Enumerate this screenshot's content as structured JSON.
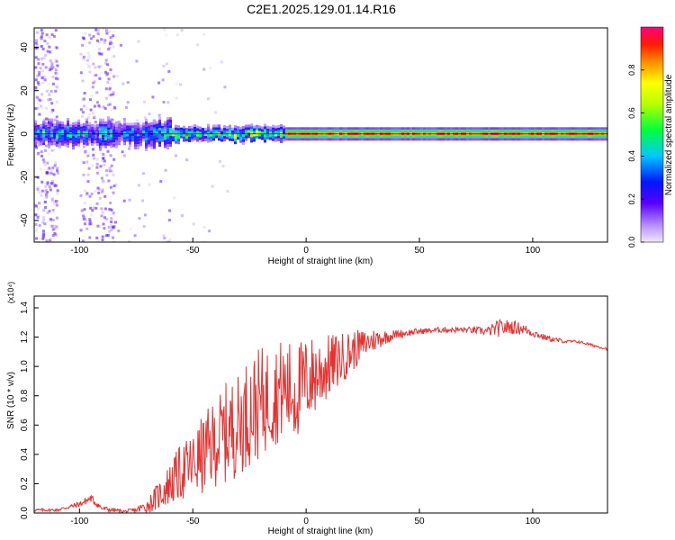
{
  "title": "C2E1.2025.129.01.14.R16",
  "colors": {
    "snr_line": "#e8302f",
    "axis": "#000000",
    "background": "#ffffff"
  },
  "chart_data": [
    {
      "type": "heatmap",
      "name": "spectrogram",
      "xlabel": "Height of straight line (km)",
      "ylabel": "Frequency (Hz)",
      "xlim": [
        -120,
        133
      ],
      "ylim": [
        -50,
        49
      ],
      "xticks": [
        -100,
        -50,
        0,
        50,
        100
      ],
      "xtick_labels": [
        "-100",
        "-50",
        "0",
        "50",
        "100"
      ],
      "yticks": [
        -40,
        -20,
        0,
        20,
        40
      ],
      "ytick_labels": [
        "-40",
        "-20",
        "0",
        "20",
        "40"
      ],
      "colorbar": {
        "label": "Normalized spectral amplitude",
        "range": [
          0,
          1
        ],
        "ticks": [
          0.0,
          0.2,
          0.4,
          0.6,
          0.8
        ],
        "tick_labels": [
          "0.0",
          "0.2",
          "0.4",
          "0.6",
          "0.8"
        ],
        "colormap": "rainbow"
      },
      "description_series": [
        {
          "name": "broadband noise bursts",
          "x_ranges": [
            [
              -120,
              -110
            ],
            [
              -100,
              -85
            ]
          ],
          "freq_span": [
            -50,
            49
          ],
          "amplitude": 0.1
        },
        {
          "name": "central band",
          "x_range": [
            -120,
            133
          ],
          "freq_center": 0,
          "amplitude": 0.85
        }
      ]
    },
    {
      "type": "line",
      "name": "snr",
      "xlabel": "Height of straight line (km)",
      "ylabel": "SNR (10 * v/v)",
      "yscale_label": "(x10⁴)",
      "xlim": [
        -120,
        133
      ],
      "ylim": [
        0,
        1.48
      ],
      "xticks": [
        -100,
        -50,
        0,
        50,
        100
      ],
      "xtick_labels": [
        "-100",
        "-50",
        "0",
        "50",
        "100"
      ],
      "yticks": [
        0.0,
        0.2,
        0.4,
        0.6,
        0.8,
        1.0,
        1.2,
        1.4
      ],
      "ytick_labels": [
        "0.0",
        "0.2",
        "0.4",
        "0.6",
        "0.8",
        "1.0",
        "1.2",
        "1.4"
      ],
      "series": [
        {
          "name": "SNR",
          "x": [
            -120,
            -110,
            -100,
            -95,
            -90,
            -80,
            -75,
            -70,
            -65,
            -60,
            -55,
            -50,
            -45,
            -40,
            -35,
            -30,
            -25,
            -20,
            -15,
            -10,
            -5,
            0,
            5,
            10,
            15,
            20,
            25,
            30,
            35,
            40,
            50,
            60,
            70,
            80,
            85,
            90,
            95,
            100,
            105,
            110,
            115,
            120,
            125,
            133
          ],
          "values": [
            0.02,
            0.02,
            0.06,
            0.1,
            0.03,
            0.01,
            0.02,
            0.05,
            0.12,
            0.2,
            0.28,
            0.33,
            0.4,
            0.48,
            0.55,
            0.6,
            0.7,
            0.75,
            0.8,
            0.85,
            0.82,
            0.9,
            0.95,
            1.0,
            1.05,
            1.1,
            1.15,
            1.18,
            1.2,
            1.22,
            1.24,
            1.25,
            1.25,
            1.24,
            1.26,
            1.27,
            1.26,
            1.23,
            1.2,
            1.18,
            1.17,
            1.17,
            1.15,
            1.12
          ],
          "noise_amplitude": [
            0.01,
            0.01,
            0.02,
            0.03,
            0.02,
            0.01,
            0.02,
            0.05,
            0.1,
            0.15,
            0.2,
            0.22,
            0.28,
            0.3,
            0.35,
            0.35,
            0.38,
            0.38,
            0.35,
            0.35,
            0.35,
            0.3,
            0.28,
            0.22,
            0.18,
            0.15,
            0.1,
            0.08,
            0.05,
            0.03,
            0.02,
            0.02,
            0.02,
            0.03,
            0.06,
            0.05,
            0.04,
            0.03,
            0.02,
            0.02,
            0.01,
            0.01,
            0.01,
            0.01
          ]
        }
      ]
    }
  ]
}
